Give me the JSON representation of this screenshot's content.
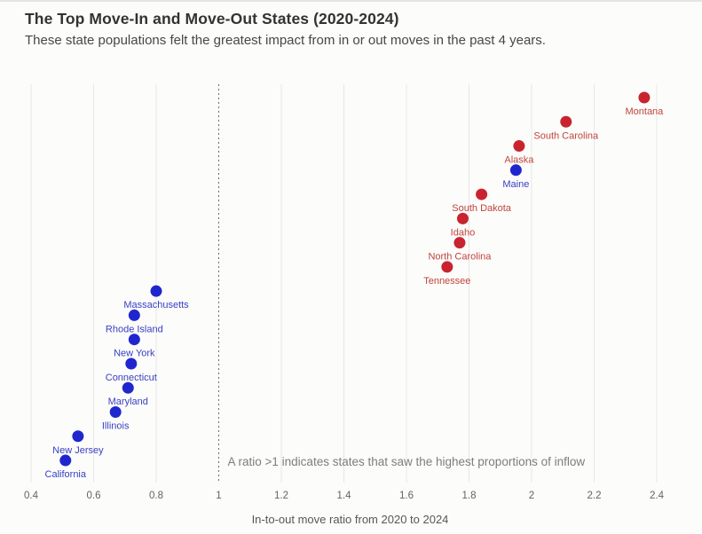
{
  "header": {
    "title": "The Top Move-In and Move-Out States (2020-2024)",
    "subtitle": "These state populations felt the greatest impact from in or out moves in the past 4 years."
  },
  "chart_data": {
    "type": "scatter",
    "xlabel": "In-to-out move ratio from 2020 to 2024",
    "x_ticks": [
      0.4,
      0.6,
      0.8,
      1,
      1.2,
      1.4,
      1.6,
      1.8,
      2,
      2.2,
      2.4
    ],
    "xlim": [
      0.4,
      2.45
    ],
    "grid": "vertical-only",
    "reference_line": {
      "x": 1,
      "style": "dashed"
    },
    "annotation": "A ratio >1 indicates states that saw the highest proportions of inflow",
    "colors": {
      "red": "#c92330",
      "blue": "#2026cd",
      "red_label": "#c0453c",
      "blue_label": "#3a40c2"
    },
    "points": [
      {
        "state": "Montana",
        "ratio": 2.36,
        "rank": 1,
        "group": "red"
      },
      {
        "state": "South Carolina",
        "ratio": 2.11,
        "rank": 2,
        "group": "red"
      },
      {
        "state": "Alaska",
        "ratio": 1.96,
        "rank": 3,
        "group": "red"
      },
      {
        "state": "Maine",
        "ratio": 1.95,
        "rank": 4,
        "group": "blue"
      },
      {
        "state": "South Dakota",
        "ratio": 1.84,
        "rank": 5,
        "group": "red"
      },
      {
        "state": "Idaho",
        "ratio": 1.78,
        "rank": 6,
        "group": "red"
      },
      {
        "state": "North Carolina",
        "ratio": 1.77,
        "rank": 7,
        "group": "red"
      },
      {
        "state": "Tennessee",
        "ratio": 1.73,
        "rank": 8,
        "group": "red"
      },
      {
        "state": "Massachusetts",
        "ratio": 0.8,
        "rank": 9,
        "group": "blue"
      },
      {
        "state": "Rhode Island",
        "ratio": 0.73,
        "rank": 10,
        "group": "blue"
      },
      {
        "state": "New York",
        "ratio": 0.73,
        "rank": 11,
        "group": "blue"
      },
      {
        "state": "Connecticut",
        "ratio": 0.72,
        "rank": 12,
        "group": "blue"
      },
      {
        "state": "Maryland",
        "ratio": 0.71,
        "rank": 13,
        "group": "blue"
      },
      {
        "state": "Illinois",
        "ratio": 0.67,
        "rank": 14,
        "group": "blue"
      },
      {
        "state": "New Jersey",
        "ratio": 0.55,
        "rank": 15,
        "group": "blue"
      },
      {
        "state": "California",
        "ratio": 0.51,
        "rank": 16,
        "group": "blue"
      }
    ]
  }
}
